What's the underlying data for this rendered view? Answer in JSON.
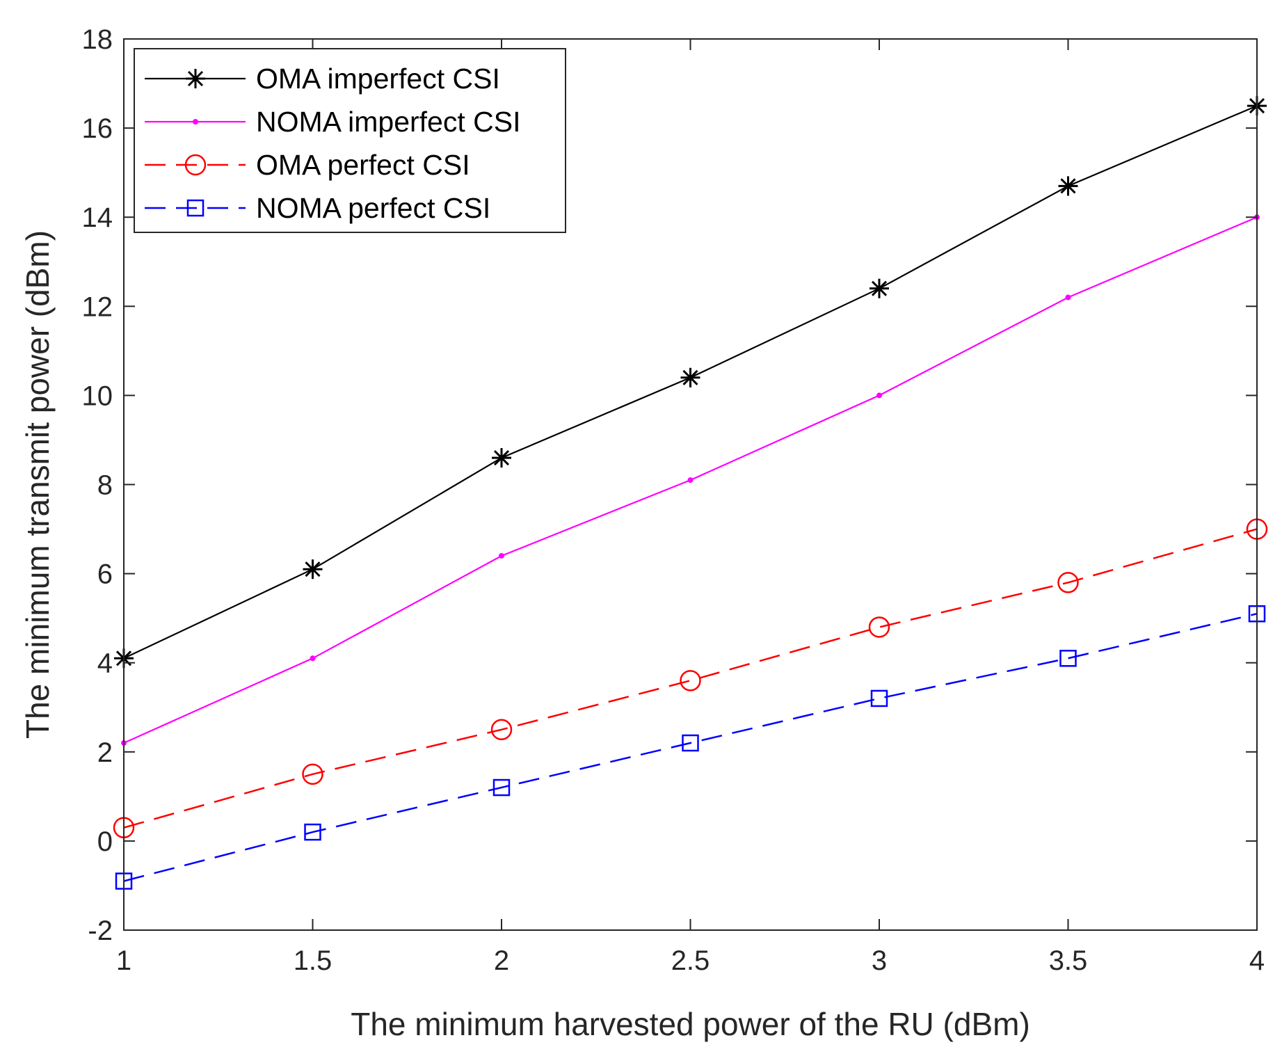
{
  "chart_data": {
    "type": "line",
    "title": "",
    "xlabel": "The minimum harvested power of the RU (dBm)",
    "ylabel": "The minimum transmit power (dBm)",
    "xlim": [
      1,
      4
    ],
    "ylim": [
      -2,
      18
    ],
    "grid": false,
    "legend_position": "top-left",
    "x": [
      1,
      1.5,
      2,
      2.5,
      3,
      3.5,
      4
    ],
    "x_tick_labels": [
      "1",
      "1.5",
      "2",
      "2.5",
      "3",
      "3.5",
      "4"
    ],
    "y_tick_labels": [
      "-2",
      "0",
      "2",
      "4",
      "6",
      "8",
      "10",
      "12",
      "14",
      "16",
      "18"
    ],
    "series": [
      {
        "name": "OMA imperfect CSI",
        "color": "#000000",
        "line": "solid",
        "marker": "asterisk",
        "values": [
          4.1,
          6.1,
          8.6,
          10.4,
          12.4,
          14.7,
          16.5
        ]
      },
      {
        "name": "NOMA imperfect CSI",
        "color": "#ff00ff",
        "line": "solid",
        "marker": "dot",
        "values": [
          2.2,
          4.1,
          6.4,
          8.1,
          10.0,
          12.2,
          14.0
        ]
      },
      {
        "name": "OMA perfect CSI",
        "color": "#ff0000",
        "line": "dashed",
        "marker": "circle",
        "values": [
          0.3,
          1.5,
          2.5,
          3.6,
          4.8,
          5.8,
          7.0
        ]
      },
      {
        "name": "NOMA perfect CSI",
        "color": "#0000ff",
        "line": "dashed",
        "marker": "square",
        "values": [
          -0.9,
          0.2,
          1.2,
          2.2,
          3.2,
          4.1,
          5.1
        ]
      }
    ]
  }
}
